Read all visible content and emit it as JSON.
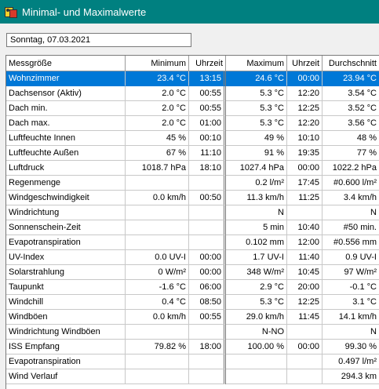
{
  "window": {
    "title": "Minimal- und Maximalwerte",
    "icon": "chart-app-icon"
  },
  "date_field": {
    "value": "Sonntag, 07.03.2021"
  },
  "table": {
    "columns": [
      "Messgröße",
      "Minimum",
      "Uhrzeit",
      "Maximum",
      "Uhrzeit",
      "Durchschnitt"
    ],
    "selected_row": 0,
    "rows": [
      [
        "Wohnzimmer",
        "23.4 °C",
        "13:15",
        "24.6 °C",
        "00:00",
        "23.94 °C"
      ],
      [
        "Dachsensor (Aktiv)",
        "2.0 °C",
        "00:55",
        "5.3 °C",
        "12:20",
        "3.54 °C"
      ],
      [
        "Dach min.",
        "2.0 °C",
        "00:55",
        "5.3 °C",
        "12:25",
        "3.52 °C"
      ],
      [
        "Dach max.",
        "2.0 °C",
        "01:00",
        "5.3 °C",
        "12:20",
        "3.56 °C"
      ],
      [
        "Luftfeuchte Innen",
        "45 %",
        "00:10",
        "49 %",
        "10:10",
        "48 %"
      ],
      [
        "Luftfeuchte Außen",
        "67 %",
        "11:10",
        "91 %",
        "19:35",
        "77 %"
      ],
      [
        "Luftdruck",
        "1018.7 hPa",
        "18:10",
        "1027.4 hPa",
        "00:00",
        "1022.2 hPa"
      ],
      [
        "Regenmenge",
        "",
        "",
        "0.2 l/m²",
        "17:45",
        "#0.600 l/m²"
      ],
      [
        "Windgeschwindigkeit",
        "0.0 km/h",
        "00:50",
        "11.3 km/h",
        "11:25",
        "3.4 km/h"
      ],
      [
        "Windrichtung",
        "",
        "",
        "N",
        "",
        "N"
      ],
      [
        "Sonnenschein-Zeit",
        "",
        "",
        "5 min",
        "10:40",
        "#50 min."
      ],
      [
        "Evapotranspiration",
        "",
        "",
        "0.102 mm",
        "12:00",
        "#0.556 mm"
      ],
      [
        "UV-Index",
        "0.0 UV-I",
        "00:00",
        "1.7 UV-I",
        "11:40",
        "0.9 UV-I"
      ],
      [
        "Solarstrahlung",
        "0 W/m²",
        "00:00",
        "348 W/m²",
        "10:45",
        "97 W/m²"
      ],
      [
        "Taupunkt",
        "-1.6 °C",
        "06:00",
        "2.9 °C",
        "20:00",
        "-0.1 °C"
      ],
      [
        "Windchill",
        "0.4 °C",
        "08:50",
        "5.3 °C",
        "12:25",
        "3.1 °C"
      ],
      [
        "Windböen",
        "0.0 km/h",
        "00:55",
        "29.0 km/h",
        "11:45",
        "14.1 km/h"
      ],
      [
        "Windrichtung Windböen",
        "",
        "",
        "N-NO",
        "",
        "N"
      ],
      [
        "ISS Empfang",
        "79.82 %",
        "18:00",
        "100.00 %",
        "00:00",
        "99.30 %"
      ],
      [
        "Evapotranspiration",
        "",
        "",
        "",
        "",
        "0.497 l/m²"
      ],
      [
        "Wind Verlauf",
        "",
        "",
        "",
        "",
        "294.3 km"
      ]
    ]
  }
}
